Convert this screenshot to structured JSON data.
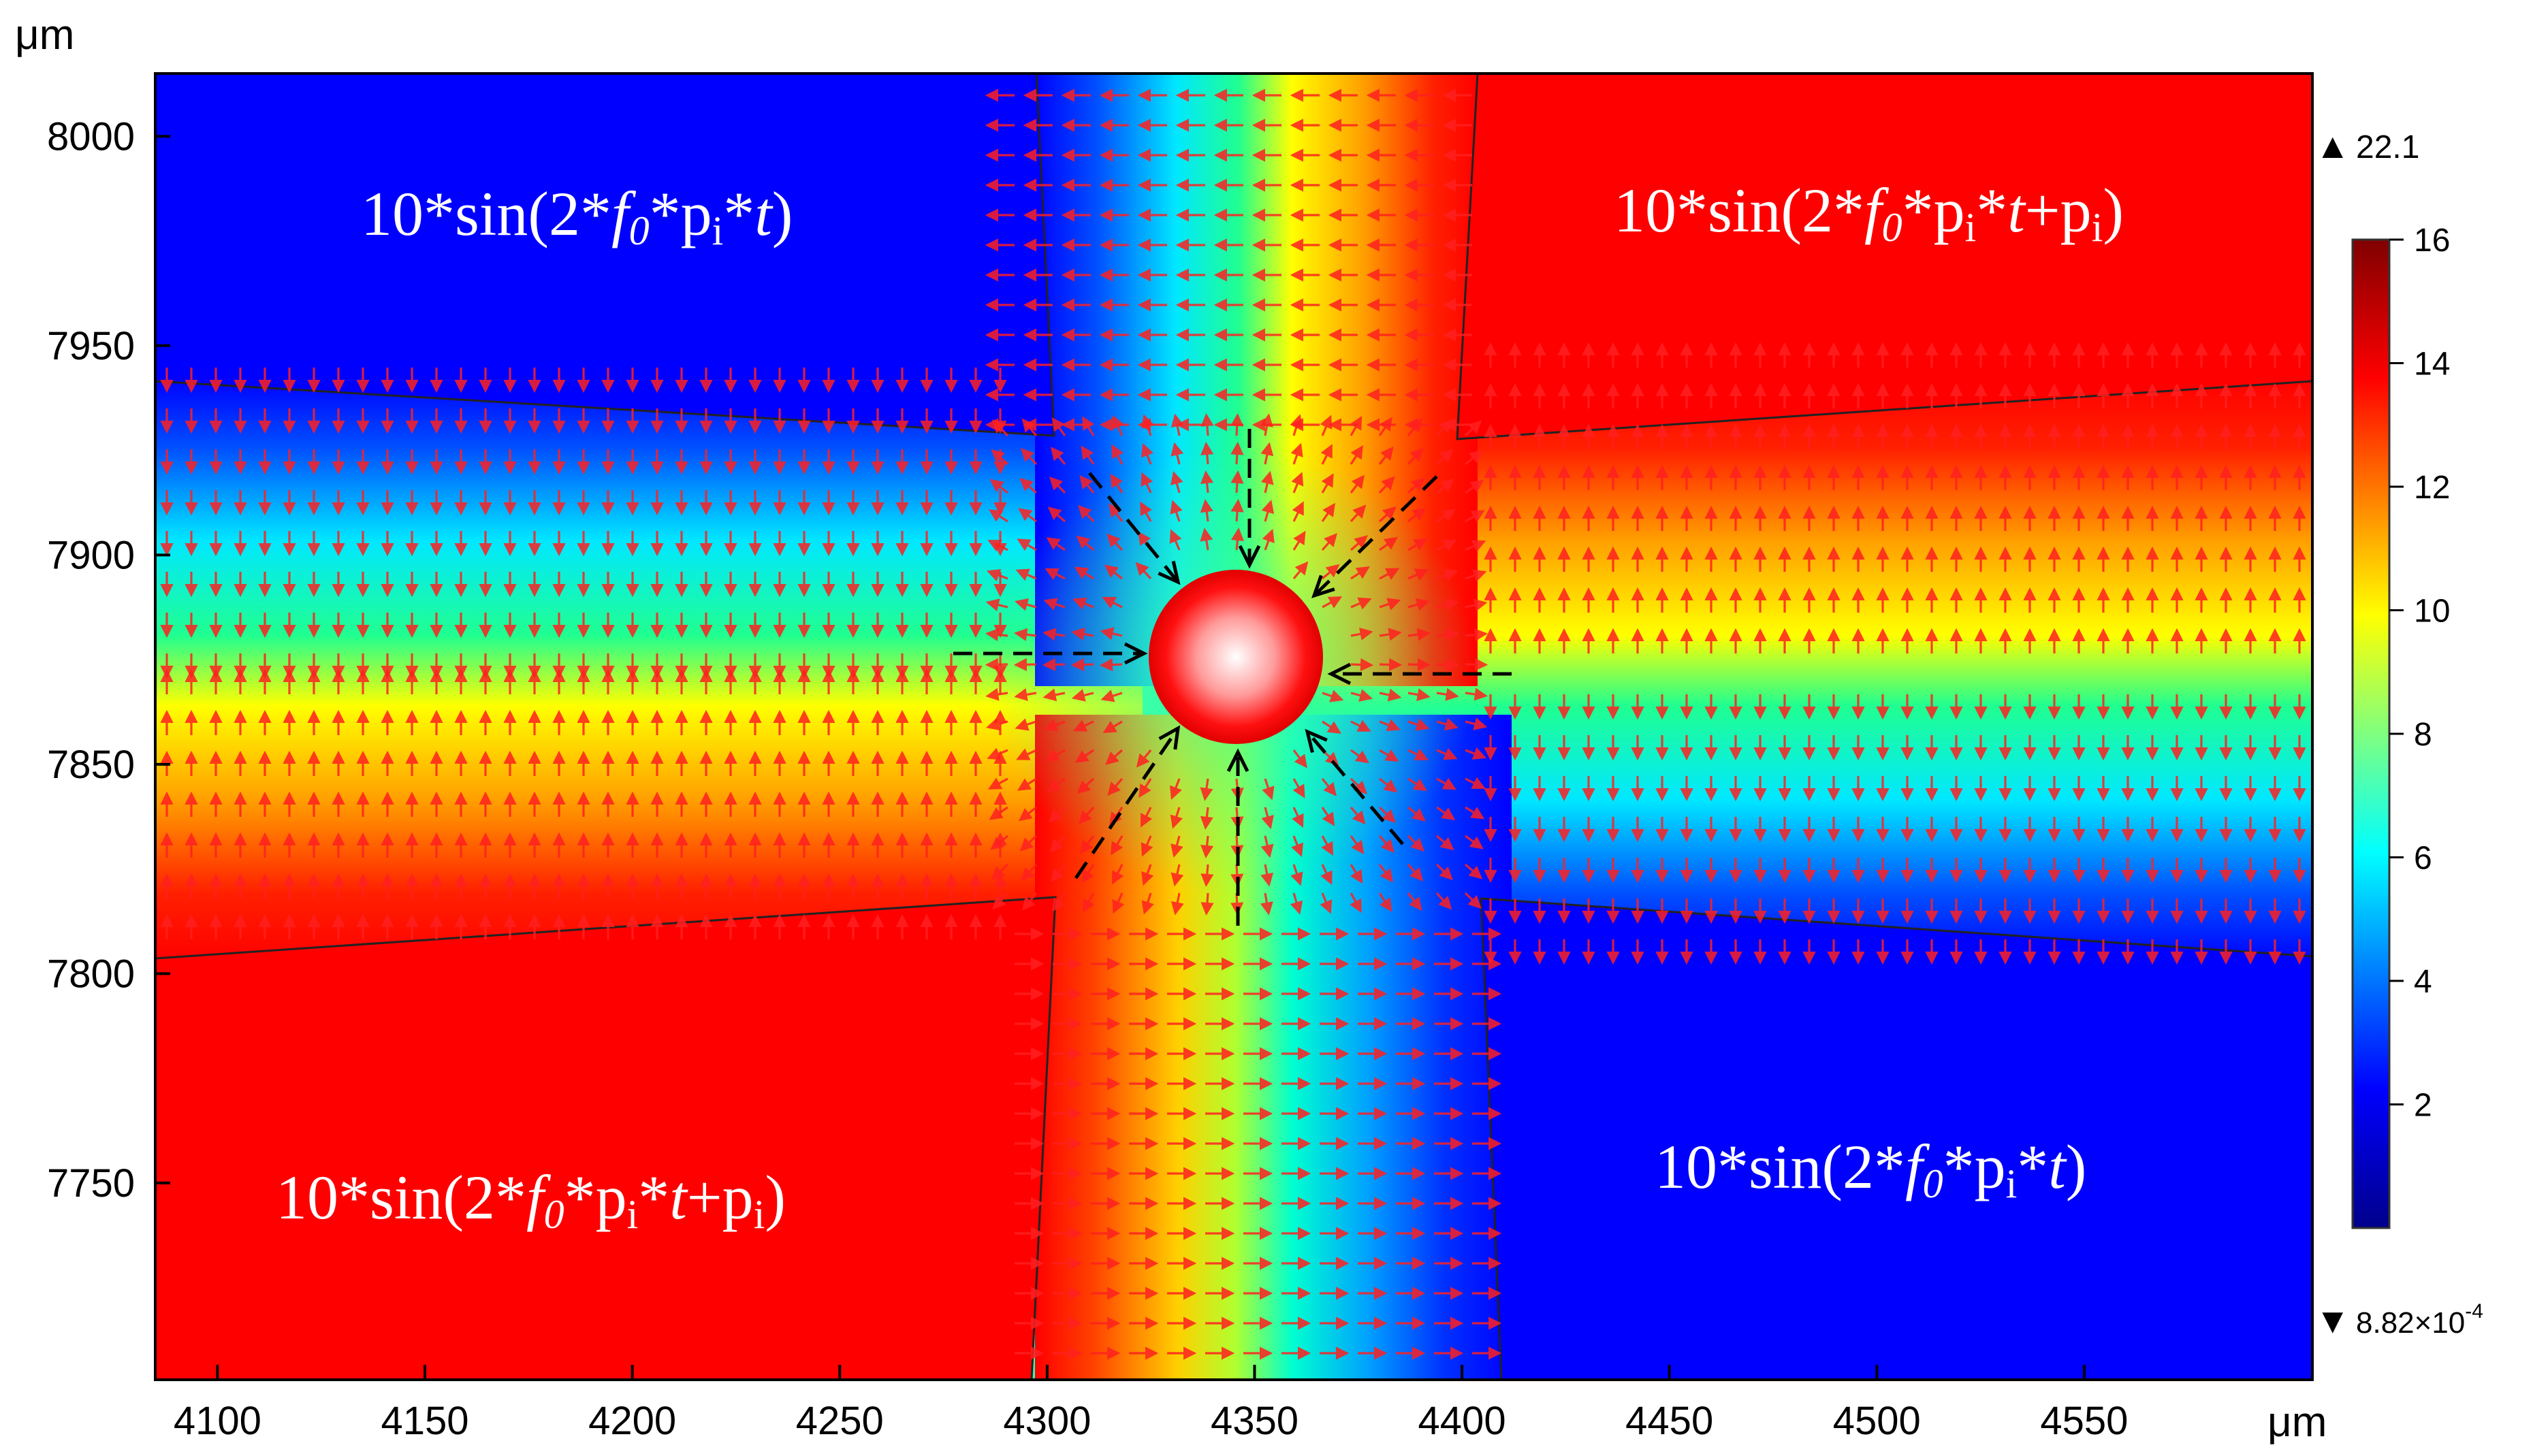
{
  "chart_data": {
    "type": "heatmap",
    "x_unit": "μm",
    "y_unit": "μm",
    "xlim": [
      4085,
      4605
    ],
    "ylim": [
      7703,
      8015
    ],
    "x_ticks": [
      4100,
      4150,
      4200,
      4250,
      4300,
      4350,
      4400,
      4450,
      4500,
      4550
    ],
    "y_ticks": [
      7750,
      7800,
      7850,
      7900,
      7950,
      8000
    ],
    "colorbar": {
      "ticks": [
        2,
        4,
        6,
        8,
        10,
        12,
        14,
        16
      ],
      "range": [
        0,
        16
      ],
      "max_label": "22.1",
      "min_label": "8.82×10",
      "min_exponent": "-4",
      "colormap": [
        "#00008b",
        "#0000ff",
        "#00ffff",
        "#ffff00",
        "#ff0000",
        "#800000"
      ]
    },
    "electrodes": [
      {
        "id": "top-left",
        "label": "10*sin(2*f0*pi*t)",
        "color": "#0000ff"
      },
      {
        "id": "top-right",
        "label": "10*sin(2*f0*pi*t+pi)",
        "color": "#ff0000"
      },
      {
        "id": "bottom-left",
        "label": "10*sin(2*f0*pi*t+pi)",
        "color": "#ff0000"
      },
      {
        "id": "bottom-right",
        "label": "10*sin(2*f0*pi*t)",
        "color": "#0000ff"
      }
    ],
    "particle": {
      "x": 4343,
      "y": 7875
    },
    "arrow_color": "#ff2020"
  },
  "labels": {
    "x_unit": "μm",
    "y_unit": "μm",
    "ten": "10*sin(2*",
    "f": "f",
    "zero": "0",
    "star_p": "*p",
    "i": "i",
    "star": "*",
    "t": "t",
    "close": ")",
    "plus_p": "+p",
    "max_label": "22.1",
    "min_label": "8.82×10",
    "min_exponent": "-4"
  }
}
